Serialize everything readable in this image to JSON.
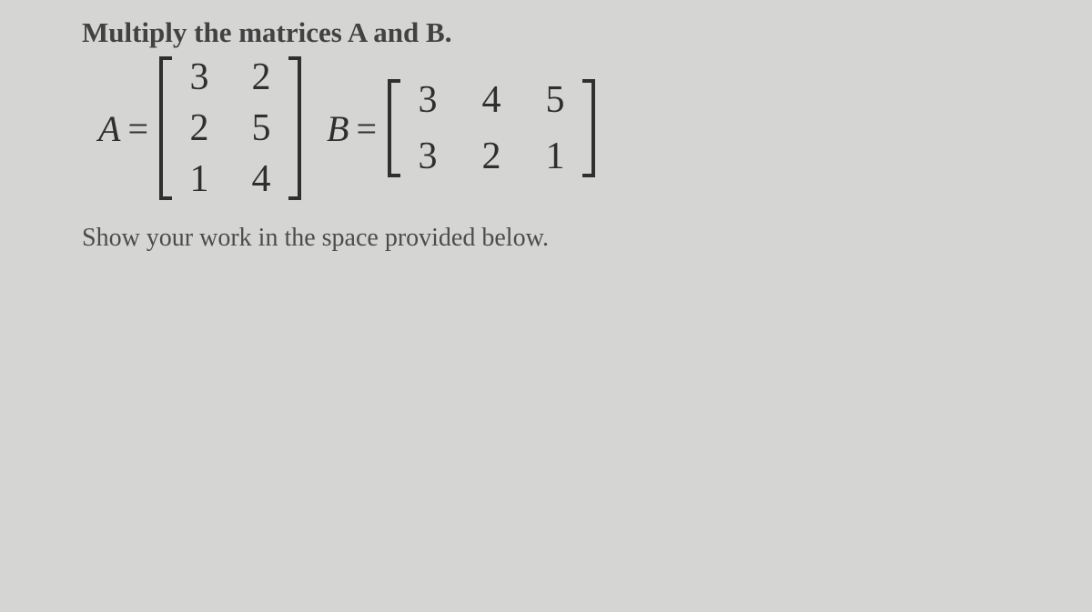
{
  "prompt_text": "Multiply the matrices A and B.",
  "matrixA": {
    "var": "A",
    "rows": 3,
    "cols": 2,
    "cells": [
      "3",
      "2",
      "2",
      "5",
      "1",
      "4"
    ],
    "col_gap": 28,
    "row_gap": 14,
    "cell_fontsize": 42
  },
  "matrixB": {
    "var": "B",
    "rows": 2,
    "cols": 3,
    "cells": [
      "3",
      "4",
      "5",
      "3",
      "2",
      "1"
    ],
    "col_gap": 30,
    "row_gap": 20,
    "cell_fontsize": 42
  },
  "instruction_text": "Show your work in the space provided below.",
  "colors": {
    "background": "#d5d5d3",
    "text_dark": "#2f2f2f",
    "text_prompt": "#424242",
    "text_instruct": "#4c4c4c"
  },
  "fontsizes": {
    "prompt": 31,
    "var": 40,
    "cell": 42,
    "instruction": 28
  }
}
